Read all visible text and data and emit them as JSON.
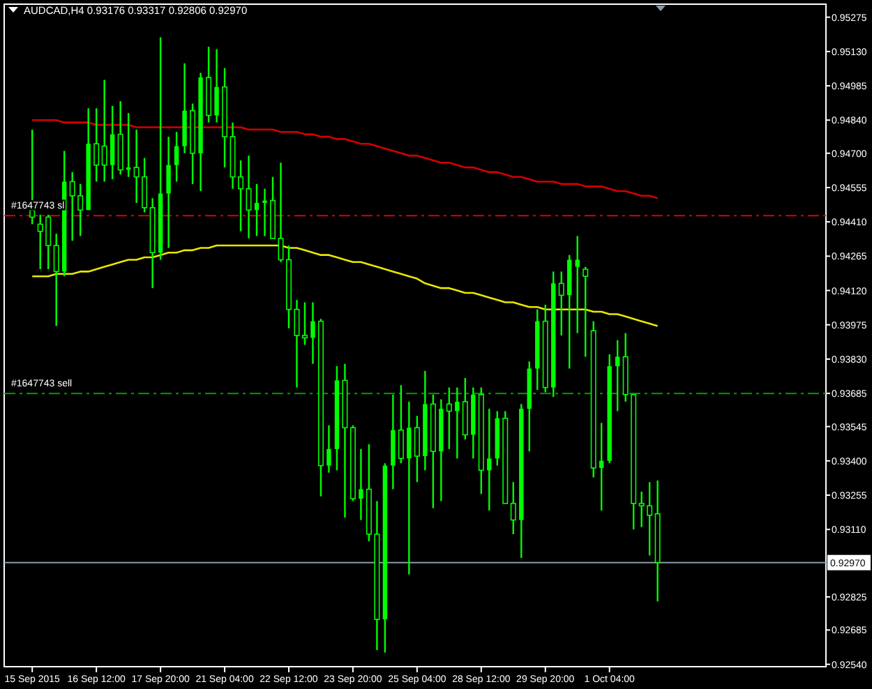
{
  "chart_data": {
    "type": "candlestick",
    "title": "AUDCAD,H4  0.93176 0.93317 0.92806 0.92970",
    "color": "#00ff00",
    "categories": [
      "15 Sep 2015",
      null,
      null,
      null,
      null,
      null,
      null,
      null,
      "16 Sep 12:00",
      null,
      null,
      null,
      null,
      null,
      null,
      null,
      "17 Sep 20:00",
      null,
      null,
      null,
      null,
      null,
      null,
      null,
      "21 Sep 04:00",
      null,
      null,
      null,
      null,
      null,
      null,
      null,
      "22 Sep 12:00",
      null,
      null,
      null,
      null,
      null,
      null,
      null,
      "23 Sep 20:00",
      null,
      null,
      null,
      null,
      null,
      null,
      null,
      "25 Sep 04:00",
      null,
      null,
      null,
      null,
      null,
      null,
      null,
      "28 Sep 12:00",
      null,
      null,
      null,
      null,
      null,
      null,
      null,
      "29 Sep 20:00",
      null,
      null,
      null,
      null,
      null,
      null,
      null,
      "1 Oct 04:00",
      null,
      null,
      null,
      null,
      null,
      null
    ],
    "ohlc": [
      [
        0.9446,
        0.948,
        0.944,
        0.9443
      ],
      [
        0.944,
        0.9444,
        0.9421,
        0.9437
      ],
      [
        0.9443,
        0.9444,
        0.9421,
        0.9431
      ],
      [
        0.9431,
        0.9436,
        0.9397,
        0.942
      ],
      [
        0.942,
        0.9471,
        0.9418,
        0.9458
      ],
      [
        0.9458,
        0.9462,
        0.9433,
        0.9452
      ],
      [
        0.9452,
        0.9457,
        0.9435,
        0.9446
      ],
      [
        0.9446,
        0.9489,
        0.9446,
        0.9474
      ],
      [
        0.9474,
        0.9489,
        0.9458,
        0.9465
      ],
      [
        0.9473,
        0.9501,
        0.9458,
        0.9465
      ],
      [
        0.9465,
        0.949,
        0.9459,
        0.9478
      ],
      [
        0.9478,
        0.9492,
        0.9461,
        0.9463
      ],
      [
        0.9463,
        0.9487,
        0.946,
        0.9464
      ],
      [
        0.9464,
        0.948,
        0.9449,
        0.946
      ],
      [
        0.946,
        0.9468,
        0.9445,
        0.9447
      ],
      [
        0.9447,
        0.9451,
        0.9413,
        0.9428
      ],
      [
        0.9428,
        0.9519,
        0.9425,
        0.9453
      ],
      [
        0.9453,
        0.9477,
        0.943,
        0.9465
      ],
      [
        0.9465,
        0.9479,
        0.9458,
        0.9473
      ],
      [
        0.9473,
        0.9508,
        0.947,
        0.9488
      ],
      [
        0.9488,
        0.9491,
        0.9457,
        0.947
      ],
      [
        0.947,
        0.9504,
        0.9454,
        0.9502
      ],
      [
        0.9502,
        0.9515,
        0.9483,
        0.9486
      ],
      [
        0.9486,
        0.9514,
        0.9483,
        0.9498
      ],
      [
        0.9498,
        0.9506,
        0.9464,
        0.9477
      ],
      [
        0.9477,
        0.9483,
        0.9455,
        0.946
      ],
      [
        0.946,
        0.9467,
        0.9437,
        0.9455
      ],
      [
        0.9455,
        0.9469,
        0.9434,
        0.9446
      ],
      [
        0.9446,
        0.9457,
        0.9435,
        0.9449
      ],
      [
        0.9449,
        0.9455,
        0.9435,
        0.945
      ],
      [
        0.945,
        0.946,
        0.9434,
        0.9434
      ],
      [
        0.9434,
        0.9466,
        0.9424,
        0.9425
      ],
      [
        0.9425,
        0.9431,
        0.9396,
        0.9404
      ],
      [
        0.9404,
        0.9408,
        0.9371,
        0.9393
      ],
      [
        0.9393,
        0.9407,
        0.9389,
        0.9392
      ],
      [
        0.9392,
        0.9407,
        0.9381,
        0.9399
      ],
      [
        0.9399,
        0.94,
        0.9325,
        0.9338
      ],
      [
        0.9338,
        0.9355,
        0.9335,
        0.9345
      ],
      [
        0.9345,
        0.938,
        0.9336,
        0.9374
      ],
      [
        0.9374,
        0.9381,
        0.9316,
        0.9354
      ],
      [
        0.9354,
        0.9355,
        0.9323,
        0.9324
      ],
      [
        0.9324,
        0.9345,
        0.9315,
        0.9328
      ],
      [
        0.9328,
        0.9347,
        0.9306,
        0.9309
      ],
      [
        0.9309,
        0.9323,
        0.926,
        0.9273
      ],
      [
        0.9273,
        0.9339,
        0.9259,
        0.9338
      ],
      [
        0.9338,
        0.9368,
        0.9328,
        0.9353
      ],
      [
        0.9353,
        0.9372,
        0.9339,
        0.9341
      ],
      [
        0.9341,
        0.9365,
        0.9292,
        0.9354
      ],
      [
        0.9354,
        0.9359,
        0.9331,
        0.9342
      ],
      [
        0.9342,
        0.9378,
        0.9336,
        0.9364
      ],
      [
        0.9364,
        0.9368,
        0.932,
        0.9344
      ],
      [
        0.9344,
        0.9366,
        0.9323,
        0.9362
      ],
      [
        0.9364,
        0.9371,
        0.9345,
        0.9361
      ],
      [
        0.9361,
        0.9371,
        0.9341,
        0.9365
      ],
      [
        0.9365,
        0.9375,
        0.9349,
        0.9351
      ],
      [
        0.9351,
        0.9371,
        0.9341,
        0.9368
      ],
      [
        0.9368,
        0.9371,
        0.9326,
        0.9336
      ],
      [
        0.9336,
        0.9362,
        0.9319,
        0.9341
      ],
      [
        0.9341,
        0.9361,
        0.9338,
        0.9358
      ],
      [
        0.9358,
        0.9361,
        0.9322,
        0.9322
      ],
      [
        0.9322,
        0.9331,
        0.9309,
        0.9315
      ],
      [
        0.9315,
        0.9364,
        0.9299,
        0.9362
      ],
      [
        0.9362,
        0.9382,
        0.9344,
        0.9379
      ],
      [
        0.9379,
        0.9404,
        0.937,
        0.9399
      ],
      [
        0.9399,
        0.9406,
        0.9369,
        0.9371
      ],
      [
        0.9371,
        0.942,
        0.9367,
        0.9415
      ],
      [
        0.9415,
        0.942,
        0.9393,
        0.941
      ],
      [
        0.941,
        0.9427,
        0.9379,
        0.9425
      ],
      [
        0.9422,
        0.9435,
        0.9394,
        0.9425
      ],
      [
        0.9421,
        0.9422,
        0.9384,
        0.9418
      ],
      [
        0.9395,
        0.9399,
        0.9333,
        0.9337
      ],
      [
        0.9337,
        0.9356,
        0.9319,
        0.934
      ],
      [
        0.934,
        0.9385,
        0.9339,
        0.938
      ],
      [
        0.938,
        0.9391,
        0.9361,
        0.9384
      ],
      [
        0.9384,
        0.9394,
        0.9365,
        0.9368
      ],
      [
        0.9368,
        0.9368,
        0.9311,
        0.9322
      ],
      [
        0.9322,
        0.9327,
        0.9312,
        0.9321
      ],
      [
        0.9321,
        0.9331,
        0.93,
        0.9317
      ],
      [
        0.93176,
        0.93317,
        0.92806,
        0.9297
      ]
    ],
    "series": [
      {
        "type": "line",
        "color": "#d40000",
        "values": [
          0.9484,
          0.9484,
          0.9484,
          0.9484,
          0.9483,
          0.9483,
          0.9483,
          0.9483,
          0.9482,
          0.9482,
          0.9482,
          0.9482,
          0.9482,
          0.9481,
          0.9481,
          0.9481,
          0.9481,
          0.9481,
          0.9481,
          0.9481,
          0.9481,
          0.9481,
          0.9481,
          0.9481,
          0.9481,
          0.9481,
          0.9481,
          0.948,
          0.948,
          0.948,
          0.948,
          0.9479,
          0.9479,
          0.9479,
          0.9478,
          0.9478,
          0.9477,
          0.9477,
          0.9476,
          0.9476,
          0.9475,
          0.9474,
          0.9474,
          0.9473,
          0.9472,
          0.9471,
          0.947,
          0.9469,
          0.9469,
          0.9468,
          0.9467,
          0.9466,
          0.9466,
          0.9465,
          0.9464,
          0.9464,
          0.9463,
          0.9462,
          0.9462,
          0.9461,
          0.946,
          0.946,
          0.9459,
          0.9458,
          0.9458,
          0.9458,
          0.9457,
          0.9457,
          0.9457,
          0.9456,
          0.9456,
          0.9456,
          0.9455,
          0.9454,
          0.9454,
          0.9453,
          0.9452,
          0.9452,
          0.9451
        ]
      },
      {
        "type": "line",
        "color": "#e8e800",
        "values": [
          0.9418,
          0.9418,
          0.9418,
          0.9419,
          0.9419,
          0.9419,
          0.942,
          0.942,
          0.9421,
          0.9422,
          0.9423,
          0.9424,
          0.9425,
          0.9425,
          0.9426,
          0.9426,
          0.9427,
          0.9428,
          0.9428,
          0.9429,
          0.9429,
          0.943,
          0.943,
          0.9431,
          0.9431,
          0.9431,
          0.9431,
          0.9431,
          0.9431,
          0.9431,
          0.9431,
          0.9431,
          0.943,
          0.943,
          0.9429,
          0.9428,
          0.9427,
          0.9427,
          0.9426,
          0.9425,
          0.9424,
          0.9424,
          0.9423,
          0.9422,
          0.9421,
          0.942,
          0.9419,
          0.9418,
          0.9417,
          0.9415,
          0.9414,
          0.9413,
          0.9413,
          0.9412,
          0.9411,
          0.9411,
          0.941,
          0.9409,
          0.9408,
          0.9407,
          0.9407,
          0.9406,
          0.9405,
          0.9405,
          0.9404,
          0.9404,
          0.9404,
          0.9404,
          0.9404,
          0.9404,
          0.9403,
          0.9403,
          0.9402,
          0.9402,
          0.9401,
          0.94,
          0.9399,
          0.9398,
          0.9397
        ]
      }
    ],
    "ylim": [
      0.9253,
      0.9533
    ],
    "yticks": [
      0.95275,
      {
        "value": 0.9513,
        "label": "0.95130"
      },
      0.94985,
      {
        "value": 0.9484,
        "label": "0.94840"
      },
      {
        "value": 0.947,
        "label": "0.94700"
      },
      0.94555,
      {
        "value": 0.9441,
        "label": "0.94410"
      },
      0.94265,
      {
        "value": 0.9412,
        "label": "0.94120"
      },
      0.93975,
      {
        "value": 0.9383,
        "label": "0.93830"
      },
      0.93685,
      0.93545,
      {
        "value": 0.934,
        "label": "0.93400"
      },
      0.93255,
      {
        "value": 0.9311,
        "label": "0.93110"
      },
      0.92825,
      0.92685,
      {
        "value": 0.9254,
        "label": "0.92540"
      }
    ],
    "ref_lines": [
      {
        "axis": "y",
        "value": 0.94436,
        "label": "#1647743 sl",
        "color": "#e00000",
        "line_style": "dashed"
      },
      {
        "axis": "y",
        "value": 0.93685,
        "label": "#1647743 sell",
        "color": "#00a000",
        "line_style": "dashed"
      },
      {
        "axis": "y",
        "value": 0.9297,
        "label": "0.92970",
        "color": "#8c9aa8",
        "line_style": "solid"
      }
    ]
  }
}
